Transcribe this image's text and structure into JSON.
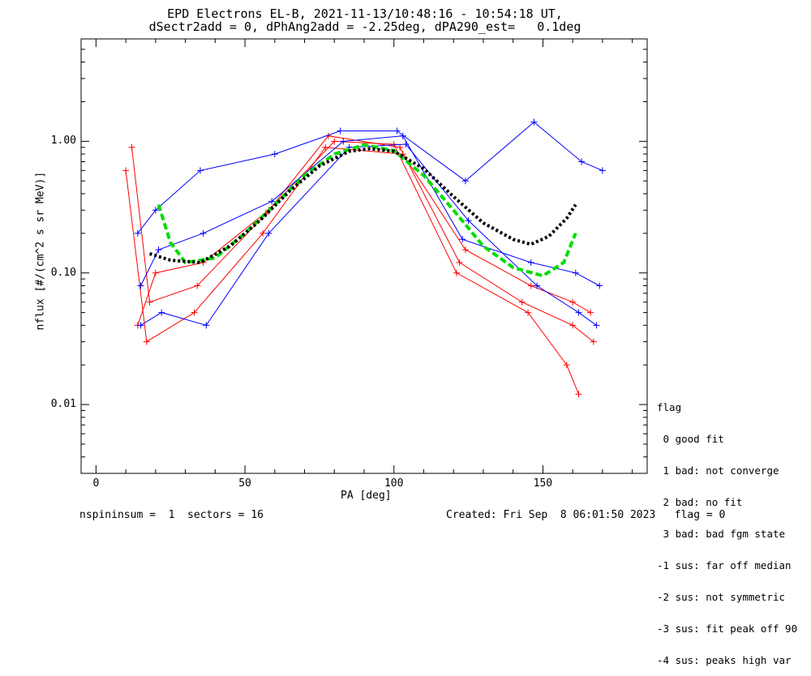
{
  "title_line1": "EPD Electrons EL-B, 2021-11-13/10:48:16 - 10:54:18 UT,",
  "title_line2": "dSectr2add = 0, dPhAng2add = -2.25deg, dPA290_est=   0.1deg",
  "footer_left": "nspininsum =  1  sectors = 16",
  "footer_right": "Created: Fri Sep  8 06:01:50 2023   flag = 0",
  "legend": {
    "title": "flag",
    "items": [
      " 0 good fit",
      " 1 bad: not converge",
      " 2 bad: no fit",
      " 3 bad: bad fgm state",
      "-1 sus: far off median",
      "-2 sus: not symmetric",
      "-3 sus: fit peak off 90",
      "-4 sus: peaks high var"
    ]
  },
  "colors": {
    "red": "#ff0000",
    "blue": "#0000ff",
    "green": "#00dd00",
    "black": "#000000"
  },
  "chart_data": {
    "type": "line",
    "xlabel": "PA [deg]",
    "ylabel": "nflux [#/(cm^2 s sr MeV)]",
    "xlim": [
      -5,
      185
    ],
    "ylim": [
      0.003,
      6.0
    ],
    "yscale": "log",
    "x_ticks": [
      0,
      50,
      100,
      150
    ],
    "x_tick_labels": [
      "0",
      "50",
      "100",
      "150"
    ],
    "y_ticks": [
      0.01,
      0.1,
      1.0
    ],
    "y_tick_labels": [
      "0.01",
      "0.10",
      "1.00"
    ],
    "series": [
      {
        "color": "red",
        "style": "solid",
        "points": [
          [
            12,
            0.9
          ],
          [
            18,
            0.06
          ],
          [
            34,
            0.08
          ],
          [
            57,
            0.28
          ],
          [
            78,
            1.1
          ],
          [
            102,
            0.9
          ],
          [
            122,
            0.12
          ],
          [
            143,
            0.06
          ],
          [
            160,
            0.04
          ],
          [
            167,
            0.03
          ]
        ]
      },
      {
        "color": "red",
        "style": "solid",
        "points": [
          [
            14,
            0.04
          ],
          [
            20,
            0.1
          ],
          [
            36,
            0.12
          ],
          [
            58,
            0.3
          ],
          [
            80,
            1.0
          ],
          [
            100,
            0.95
          ],
          [
            121,
            0.1
          ],
          [
            145,
            0.05
          ],
          [
            158,
            0.02
          ],
          [
            162,
            0.012
          ]
        ]
      },
      {
        "color": "red",
        "style": "solid",
        "points": [
          [
            10,
            0.6
          ],
          [
            17,
            0.03
          ],
          [
            33,
            0.05
          ],
          [
            56,
            0.2
          ],
          [
            77,
            0.9
          ],
          [
            103,
            0.8
          ],
          [
            124,
            0.15
          ],
          [
            146,
            0.08
          ],
          [
            160,
            0.06
          ],
          [
            166,
            0.05
          ]
        ]
      },
      {
        "color": "blue",
        "style": "solid",
        "points": [
          [
            15,
            0.08
          ],
          [
            21,
            0.15
          ],
          [
            36,
            0.2
          ],
          [
            59,
            0.35
          ],
          [
            83,
            1.0
          ],
          [
            103,
            1.1
          ],
          [
            123,
            0.18
          ],
          [
            146,
            0.12
          ],
          [
            161,
            0.1
          ],
          [
            169,
            0.08
          ]
        ]
      },
      {
        "color": "blue",
        "style": "solid",
        "points": [
          [
            15,
            0.04
          ],
          [
            22,
            0.05
          ],
          [
            37,
            0.04
          ],
          [
            58,
            0.2
          ],
          [
            85,
            0.9
          ],
          [
            104,
            0.95
          ],
          [
            125,
            0.25
          ],
          [
            148,
            0.08
          ],
          [
            162,
            0.05
          ],
          [
            168,
            0.04
          ]
        ]
      },
      {
        "color": "blue",
        "style": "solid",
        "points": [
          [
            14,
            0.2
          ],
          [
            20,
            0.3
          ],
          [
            35,
            0.6
          ],
          [
            60,
            0.8
          ],
          [
            82,
            1.2
          ],
          [
            101,
            1.2
          ],
          [
            124,
            0.5
          ],
          [
            147,
            1.4
          ],
          [
            163,
            0.7
          ],
          [
            170,
            0.6
          ]
        ]
      },
      {
        "name": "",
        "color": "green",
        "style": "dashed",
        "points": [
          [
            21,
            0.33
          ],
          [
            25,
            0.17
          ],
          [
            30,
            0.12
          ],
          [
            40,
            0.13
          ],
          [
            50,
            0.2
          ],
          [
            60,
            0.33
          ],
          [
            70,
            0.55
          ],
          [
            80,
            0.8
          ],
          [
            90,
            0.94
          ],
          [
            100,
            0.85
          ],
          [
            110,
            0.55
          ],
          [
            120,
            0.3
          ],
          [
            130,
            0.16
          ],
          [
            140,
            0.11
          ],
          [
            150,
            0.095
          ],
          [
            157,
            0.12
          ],
          [
            161,
            0.2
          ]
        ]
      },
      {
        "name": "",
        "color": "black",
        "style": "dotted",
        "points": [
          [
            18,
            0.14
          ],
          [
            25,
            0.125
          ],
          [
            35,
            0.12
          ],
          [
            45,
            0.16
          ],
          [
            55,
            0.25
          ],
          [
            65,
            0.42
          ],
          [
            75,
            0.65
          ],
          [
            85,
            0.84
          ],
          [
            92,
            0.88
          ],
          [
            100,
            0.84
          ],
          [
            110,
            0.62
          ],
          [
            120,
            0.38
          ],
          [
            130,
            0.24
          ],
          [
            140,
            0.18
          ],
          [
            146,
            0.165
          ],
          [
            152,
            0.19
          ],
          [
            158,
            0.26
          ],
          [
            161,
            0.33
          ]
        ]
      }
    ]
  }
}
